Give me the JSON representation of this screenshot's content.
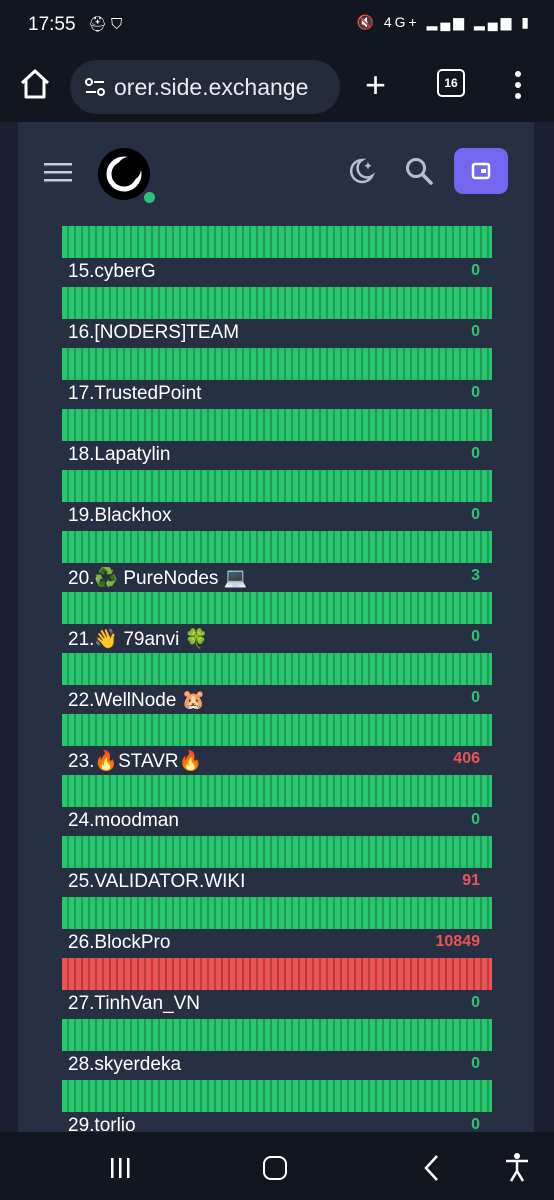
{
  "status_bar": {
    "time": "17:55",
    "left_icons": [
      "notification-icon",
      "shield-icon"
    ],
    "right_icons": [
      "mute-icon",
      "4g-icon",
      "signal-icon",
      "signal-icon",
      "battery-icon"
    ],
    "network_label": "4G+"
  },
  "browser": {
    "url": "orer.side.exchange",
    "tab_count": "16"
  },
  "colors": {
    "green": "#28c76f",
    "red": "#ea5455",
    "accent": "#7367f0",
    "online": "#28c37a"
  },
  "validators": [
    {
      "name": "15.cyberG",
      "value": "0",
      "status": "green",
      "bar": "green"
    },
    {
      "name": "16.[NODERS]TEAM",
      "value": "0",
      "status": "green",
      "bar": "green"
    },
    {
      "name": "17.TrustedPoint",
      "value": "0",
      "status": "green",
      "bar": "green"
    },
    {
      "name": "18.Lapatylin",
      "value": "0",
      "status": "green",
      "bar": "green"
    },
    {
      "name": "19.Blackhox",
      "value": "0",
      "status": "green",
      "bar": "green"
    },
    {
      "name": "20.♻️ PureNodes 💻",
      "value": "3",
      "status": "green",
      "bar": "green"
    },
    {
      "name": "21.👋 79anvi 🍀",
      "value": "0",
      "status": "green",
      "bar": "green"
    },
    {
      "name": "22.WellNode 🐹",
      "value": "0",
      "status": "green",
      "bar": "green"
    },
    {
      "name": "23.🔥STAVR🔥",
      "value": "406",
      "status": "red",
      "bar": "green"
    },
    {
      "name": "24.moodman",
      "value": "0",
      "status": "green",
      "bar": "green"
    },
    {
      "name": "25.VALIDATOR.WIKI",
      "value": "91",
      "status": "red",
      "bar": "green"
    },
    {
      "name": "26.BlockPro",
      "value": "10849",
      "status": "red",
      "bar": "green"
    },
    {
      "name": "27.TinhVan_VN",
      "value": "0",
      "status": "green",
      "bar": "red"
    },
    {
      "name": "28.skyerdeka",
      "value": "0",
      "status": "green",
      "bar": "green"
    },
    {
      "name": "29.torlio",
      "value": "0",
      "status": "green",
      "bar": "green"
    }
  ]
}
